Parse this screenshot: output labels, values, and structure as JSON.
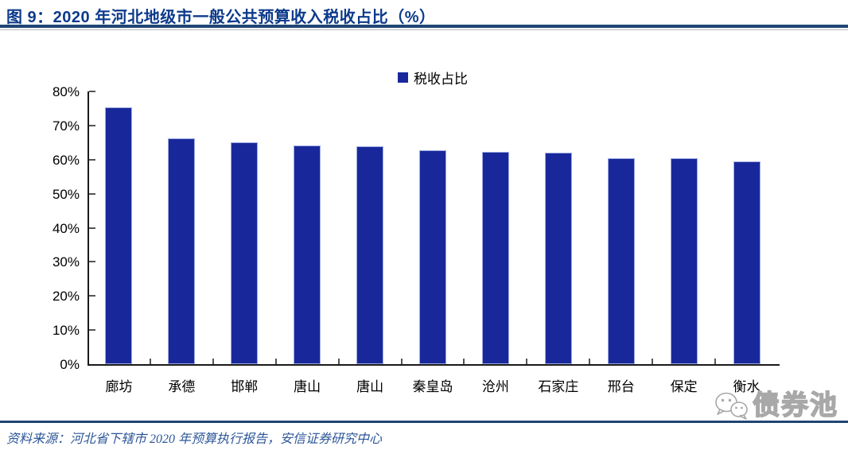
{
  "figure": {
    "title": "图 9：2020 年河北地级市一般公共预算收入税收占比（%）",
    "source": "资料来源：河北省下辖市 2020 年预算执行报告，安信证券研究中心",
    "watermark": "债券池"
  },
  "colors": {
    "bar": "#18289b",
    "bar_border": "#9fabdf",
    "title": "#0d3a8b",
    "rule": "#1f4573",
    "source_text": "#2d5699",
    "watermark": "#a8a8a8"
  },
  "chart_data": {
    "type": "bar",
    "title": "2020 年河北地级市一般公共预算收入税收占比（%）",
    "legend": [
      "税收占比"
    ],
    "legend_position": "top-center",
    "categories": [
      "廊坊",
      "承德",
      "邯郸",
      "唐山",
      "唐山",
      "秦皇岛",
      "沧州",
      "石家庄",
      "邢台",
      "保定",
      "衡水"
    ],
    "series": [
      {
        "name": "税收占比",
        "values": [
          75.3,
          66.2,
          65.1,
          64.1,
          64.0,
          62.8,
          62.3,
          62.0,
          60.5,
          60.3,
          59.5
        ]
      }
    ],
    "xlabel": "",
    "ylabel": "",
    "ylim": [
      0,
      80
    ],
    "ytick_step": 10,
    "ytick_labels": [
      "0%",
      "10%",
      "20%",
      "30%",
      "40%",
      "50%",
      "60%",
      "70%",
      "80%"
    ],
    "grid": false
  }
}
